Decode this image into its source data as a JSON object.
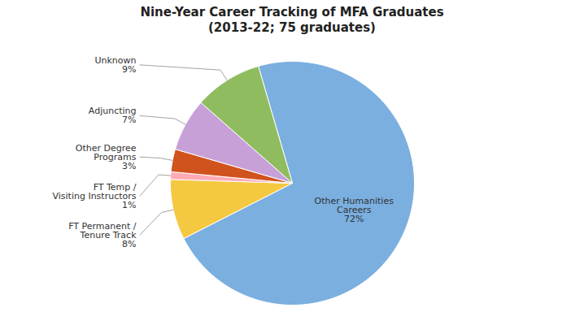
{
  "chart_data": {
    "type": "pie",
    "title": "Nine-Year Career Tracking of MFA Graduates\n(2013-22; 75 graduates)",
    "categories": [
      "Other Humanities\nCareers",
      "FT Permanent /\nTenure Track",
      "FT Temp /\nVisiting Instructors",
      "Other Degree\nPrograms",
      "Adjuncting",
      "Unknown"
    ],
    "values": [
      72,
      8,
      1,
      3,
      7,
      9
    ],
    "value_labels": [
      "72%",
      "8%",
      "1%",
      "3%",
      "7%",
      "9%"
    ],
    "data_labels": true,
    "colors": [
      "#7AAFE0",
      "#F5C842",
      "#FFAAB5",
      "#D0531E",
      "#C8A0D8",
      "#90BC60"
    ],
    "tick_labels": false
  }
}
